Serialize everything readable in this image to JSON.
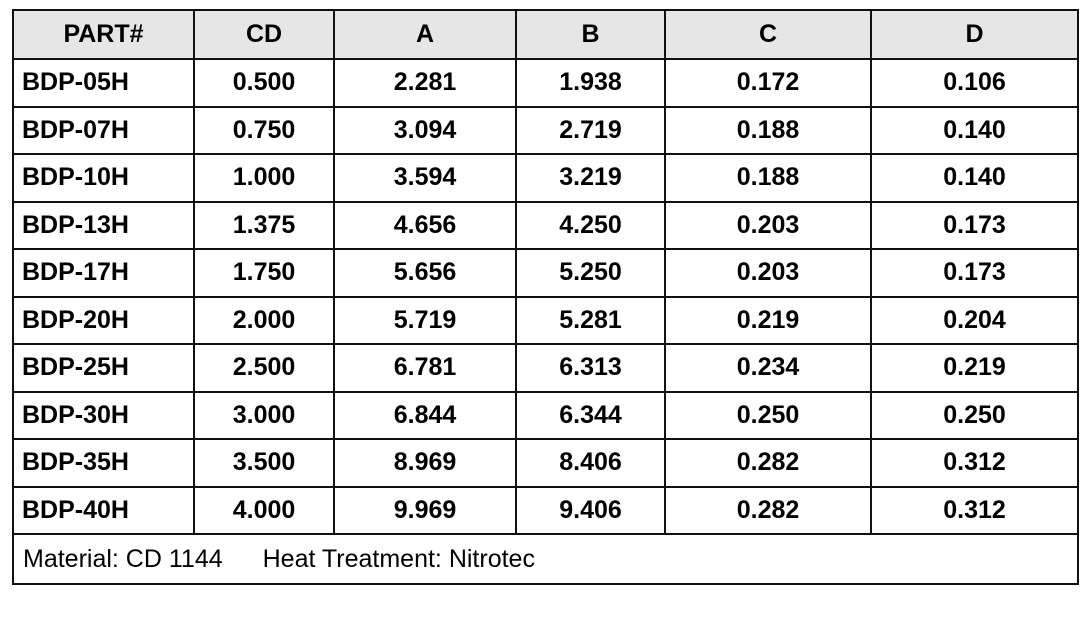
{
  "table": {
    "headers": [
      "PART#",
      "CD",
      "A",
      "B",
      "C",
      "D"
    ],
    "rows": [
      [
        "BDP-05H",
        "0.500",
        "2.281",
        "1.938",
        "0.172",
        "0.106"
      ],
      [
        "BDP-07H",
        "0.750",
        "3.094",
        "2.719",
        "0.188",
        "0.140"
      ],
      [
        "BDP-10H",
        "1.000",
        "3.594",
        "3.219",
        "0.188",
        "0.140"
      ],
      [
        "BDP-13H",
        "1.375",
        "4.656",
        "4.250",
        "0.203",
        "0.173"
      ],
      [
        "BDP-17H",
        "1.750",
        "5.656",
        "5.250",
        "0.203",
        "0.173"
      ],
      [
        "BDP-20H",
        "2.000",
        "5.719",
        "5.281",
        "0.219",
        "0.204"
      ],
      [
        "BDP-25H",
        "2.500",
        "6.781",
        "6.313",
        "0.234",
        "0.219"
      ],
      [
        "BDP-30H",
        "3.000",
        "6.844",
        "6.344",
        "0.250",
        "0.250"
      ],
      [
        "BDP-35H",
        "3.500",
        "8.969",
        "8.406",
        "0.282",
        "0.312"
      ],
      [
        "BDP-40H",
        "4.000",
        "9.969",
        "9.406",
        "0.282",
        "0.312"
      ]
    ],
    "header_background": "#e6e6e6"
  },
  "footer": {
    "material": "Material: CD 1144",
    "heat_treatment": "Heat Treatment: Nitrotec"
  }
}
